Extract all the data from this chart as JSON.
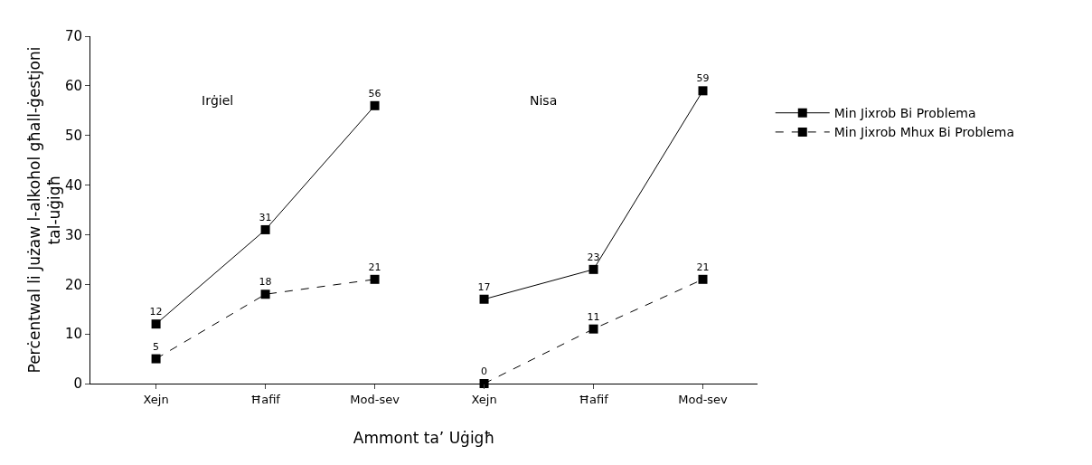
{
  "chart_data": {
    "type": "line",
    "categories": [
      "Xejn",
      "Ħafif",
      "Mod-sev",
      "Xejn",
      "Ħafif",
      "Mod-sev"
    ],
    "series": [
      {
        "name": "Min Jixrob Bi Problema",
        "color": "#000000",
        "line_style": "solid",
        "values": [
          12,
          31,
          56,
          null,
          null,
          null
        ]
      },
      {
        "color": "#000000",
        "line_style": "solid",
        "values": [
          null,
          null,
          null,
          17,
          23,
          59
        ]
      },
      {
        "name": "Min Jixrob Mhux Bi Problema",
        "color": "#000000",
        "line_style": "dashed",
        "values": [
          5,
          18,
          21,
          null,
          null,
          null
        ]
      },
      {
        "color": "#000000",
        "line_style": "dashed",
        "values": [
          null,
          null,
          null,
          0,
          11,
          21
        ]
      }
    ],
    "xlabel": "Ammont ta’ Uġigħ",
    "ylabel": "Perċentwal li Jużaw l-alkohol għall-ġestjoni tal-uġigħ",
    "annotations": [
      "Irġiel",
      "Nisa"
    ],
    "ylim": [
      0,
      70
    ],
    "yticks": [
      0,
      10,
      20,
      30,
      40,
      50,
      60,
      70
    ],
    "grid": false,
    "legend": "top right",
    "marker": "square",
    "data_labels": true
  }
}
